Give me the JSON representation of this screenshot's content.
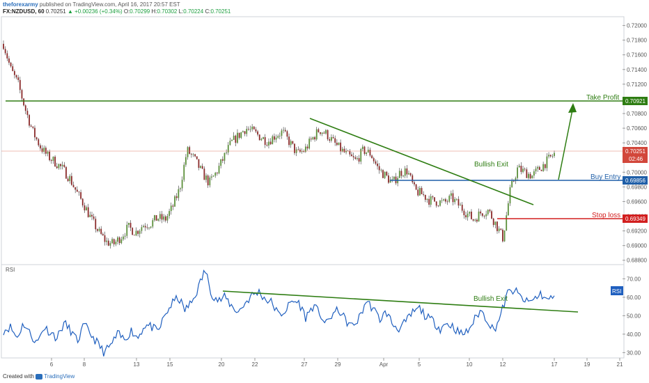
{
  "header": {
    "author": "theforexarmy",
    "published_text": "published on TradingView.com, April 16, 2017 20:57 EST",
    "symbol": "FX:NZDUSD, 60",
    "last": "0.70251",
    "change": "+0.00236 (+0.34%)",
    "open_label": "O:",
    "open": "0.70299",
    "high_label": "H:",
    "high": "0.70302",
    "low_label": "L:",
    "low": "0.70224",
    "close_label": "C:",
    "close": "0.70251"
  },
  "footer": {
    "created_with": "Created with",
    "brand": "TradingView"
  },
  "colors": {
    "up": "#5b8f3a",
    "down": "#8a2a2a",
    "green_line": "#2e7d12",
    "blue_line": "#1f5fa8",
    "red_line": "#d21f1f",
    "rsi": "#1f5fbf",
    "price_line": "#e07a6a"
  },
  "chart_data": [
    {
      "type": "candlestick",
      "symbol": "FX:NZDUSD",
      "timeframe": "60",
      "y_ticks": [
        "0.72000",
        "0.71800",
        "0.71600",
        "0.71400",
        "0.71200",
        "0.71000",
        "0.70800",
        "0.70600",
        "0.70400",
        "0.70200",
        "0.70000",
        "0.69800",
        "0.69600",
        "0.69400",
        "0.69200",
        "0.69000",
        "0.68800"
      ],
      "ylim": [
        0.6875,
        0.7211
      ],
      "x_ticks": [
        "6",
        "8",
        "13",
        "15",
        "20",
        "22",
        "27",
        "29",
        "Apr",
        "5",
        "10",
        "12",
        "17",
        "19",
        "21"
      ],
      "approx_closes": [
        0.7175,
        0.714,
        0.712,
        0.7085,
        0.7055,
        0.7035,
        0.7022,
        0.7014,
        0.7005,
        0.6992,
        0.6972,
        0.6955,
        0.6935,
        0.6918,
        0.6905,
        0.6902,
        0.6912,
        0.6925,
        0.6918,
        0.6928,
        0.693,
        0.6938,
        0.6935,
        0.6952,
        0.6978,
        0.703,
        0.7018,
        0.7,
        0.6985,
        0.7,
        0.702,
        0.704,
        0.705,
        0.706,
        0.7055,
        0.7048,
        0.7042,
        0.705,
        0.7055,
        0.704,
        0.7025,
        0.703,
        0.7045,
        0.7058,
        0.7052,
        0.704,
        0.703,
        0.7022,
        0.7015,
        0.703,
        0.7025,
        0.7005,
        0.6995,
        0.6985,
        0.7,
        0.7002,
        0.6975,
        0.697,
        0.6962,
        0.696,
        0.6958,
        0.6965,
        0.6955,
        0.6945,
        0.6935,
        0.6945,
        0.6948,
        0.693,
        0.691,
        0.6975,
        0.7005,
        0.7,
        0.6995,
        0.7005,
        0.7015,
        0.7025
      ],
      "annotations": [
        {
          "label": "Take Profit",
          "price": 0.70921,
          "tag": "0.70921"
        },
        {
          "label": "Buy Entry",
          "price": 0.69856,
          "tag": "0.69856"
        },
        {
          "label": "Stop loss",
          "price": 0.69349,
          "tag": "0.69349"
        },
        {
          "label": "Bullish Exit"
        }
      ],
      "current_price": {
        "price": 0.70251,
        "tag": "0.70251",
        "countdown": "02:46"
      }
    },
    {
      "type": "line",
      "title": "RSI",
      "series": [
        {
          "name": "RSI"
        }
      ],
      "y_ticks": [
        "70.00",
        "60.00",
        "50.00",
        "40.00",
        "30.00"
      ],
      "ylim": [
        27.5,
        77.3
      ],
      "approx_values": [
        42,
        44,
        38,
        46,
        40,
        35,
        44,
        41,
        38,
        46,
        42,
        36,
        45,
        40,
        35,
        30,
        34,
        40,
        37,
        42,
        38,
        45,
        44,
        41,
        50,
        56,
        60,
        53,
        57,
        65,
        75,
        62,
        58,
        60,
        55,
        52,
        57,
        61,
        63,
        59,
        57,
        50,
        53,
        58,
        57,
        49,
        55,
        52,
        45,
        51,
        53,
        47,
        44,
        49,
        58,
        54,
        48,
        52,
        45,
        43,
        47,
        52,
        54,
        49,
        47,
        43,
        46,
        44,
        40,
        41,
        47,
        53,
        48,
        42,
        50,
        62,
        64,
        60,
        57,
        59,
        62,
        58,
        61
      ],
      "annotations": [
        {
          "label": "Bullish Exit"
        }
      ],
      "current_tag": "RSI"
    }
  ]
}
